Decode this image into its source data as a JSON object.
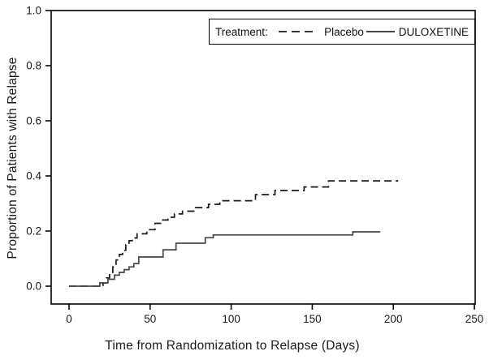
{
  "figure": {
    "background": "#ffffff",
    "frame_color": "#000000",
    "text_color": "#1a1a1a"
  },
  "chart_data": {
    "type": "line",
    "subtype": "kaplan-meier-step",
    "title": "",
    "xlabel": "Time from Randomization to Relapse (Days)",
    "ylabel": "Proportion of Patients with Relapse",
    "xlim": [
      0,
      250
    ],
    "ylim": [
      0.0,
      1.0
    ],
    "x_ticks": [
      0,
      50,
      100,
      150,
      200,
      250
    ],
    "y_ticks": [
      0.0,
      0.2,
      0.4,
      0.6,
      0.8,
      1.0
    ],
    "grid": false,
    "legend": {
      "prefix": "Treatment:",
      "position": "top-right-inside",
      "entries": [
        {
          "name": "Placebo",
          "line_style": "dashed",
          "color": "#1a1a1a"
        },
        {
          "name": "DULOXETINE",
          "line_style": "solid",
          "color": "#474747"
        }
      ]
    },
    "series": [
      {
        "name": "Placebo",
        "style": "dashed",
        "color": "#1a1a1a",
        "start_day": 0,
        "start_value": 0.0,
        "end_day": 203,
        "steps": [
          [
            21,
            0.012
          ],
          [
            23,
            0.03
          ],
          [
            25,
            0.05
          ],
          [
            27,
            0.07
          ],
          [
            29,
            0.095
          ],
          [
            31,
            0.115
          ],
          [
            33,
            0.13
          ],
          [
            35,
            0.15
          ],
          [
            37,
            0.165
          ],
          [
            39,
            0.175
          ],
          [
            42,
            0.19
          ],
          [
            48,
            0.205
          ],
          [
            53,
            0.228
          ],
          [
            57,
            0.24
          ],
          [
            61,
            0.25
          ],
          [
            65,
            0.262
          ],
          [
            70,
            0.272
          ],
          [
            78,
            0.285
          ],
          [
            86,
            0.297
          ],
          [
            93,
            0.31
          ],
          [
            115,
            0.332
          ],
          [
            127,
            0.347
          ],
          [
            145,
            0.36
          ],
          [
            160,
            0.382
          ]
        ]
      },
      {
        "name": "DULOXETINE",
        "style": "solid",
        "color": "#474747",
        "start_day": 0,
        "start_value": 0.0,
        "end_day": 192,
        "steps": [
          [
            19,
            0.012
          ],
          [
            24,
            0.025
          ],
          [
            28,
            0.04
          ],
          [
            31,
            0.05
          ],
          [
            34,
            0.06
          ],
          [
            37,
            0.07
          ],
          [
            40,
            0.082
          ],
          [
            43,
            0.106
          ],
          [
            58,
            0.132
          ],
          [
            66,
            0.156
          ],
          [
            84,
            0.176
          ],
          [
            89,
            0.186
          ],
          [
            175,
            0.197
          ]
        ]
      }
    ]
  }
}
